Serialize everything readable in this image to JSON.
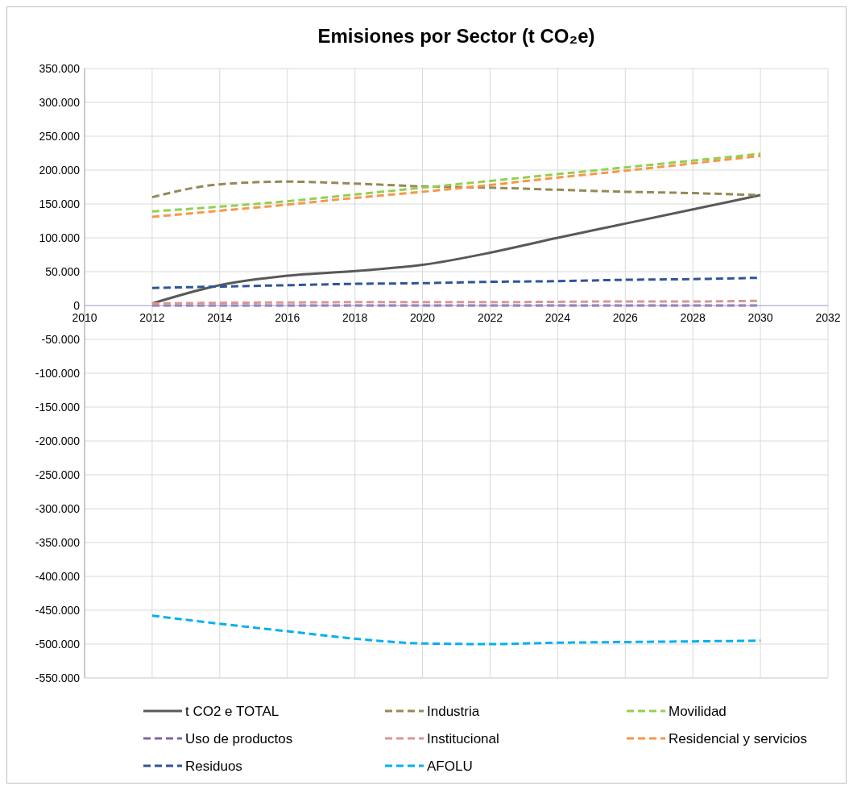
{
  "chart_data": {
    "type": "line",
    "title": "Emisiones por Sector (t CO₂e)",
    "x": [
      2012,
      2014,
      2016,
      2018,
      2020,
      2022,
      2024,
      2026,
      2028,
      2030
    ],
    "xlim": [
      2010,
      2032
    ],
    "xticks": [
      2010,
      2012,
      2014,
      2016,
      2018,
      2020,
      2022,
      2024,
      2026,
      2028,
      2030,
      2032
    ],
    "ylim": [
      -550000,
      350000
    ],
    "yticks": [
      {
        "value": -550000,
        "label": "-550.000"
      },
      {
        "value": -500000,
        "label": "-500.000"
      },
      {
        "value": -450000,
        "label": "-450.000"
      },
      {
        "value": -400000,
        "label": "-400.000"
      },
      {
        "value": -350000,
        "label": "-350.000"
      },
      {
        "value": -300000,
        "label": "-300.000"
      },
      {
        "value": -250000,
        "label": "-250.000"
      },
      {
        "value": -200000,
        "label": "-200.000"
      },
      {
        "value": -150000,
        "label": "-150.000"
      },
      {
        "value": -100000,
        "label": "-100.000"
      },
      {
        "value": -50000,
        "label": "-50.000"
      },
      0,
      {
        "value": 50000,
        "label": "50.000"
      },
      {
        "value": 100000,
        "label": "100.000"
      },
      {
        "value": 150000,
        "label": "150.000"
      },
      {
        "value": 200000,
        "label": "200.000"
      },
      {
        "value": 250000,
        "label": "250.000"
      },
      {
        "value": 300000,
        "label": "300.000"
      },
      {
        "value": 350000,
        "label": "350.000"
      }
    ],
    "grid": true,
    "legend": "bottom",
    "series": [
      {
        "name": "t CO2 e TOTAL",
        "color": "#595959",
        "line_style": "solid",
        "values": [
          3000,
          30000,
          44000,
          51000,
          60000,
          78000,
          100000,
          121000,
          142000,
          163000
        ]
      },
      {
        "name": "Industria",
        "color": "#948a54",
        "line_style": "dashed",
        "values": [
          160000,
          179000,
          183000,
          180000,
          176000,
          174000,
          171000,
          168000,
          166000,
          163000
        ]
      },
      {
        "name": "Movilidad",
        "color": "#92d050",
        "line_style": "dashed",
        "values": [
          139000,
          146000,
          154000,
          164000,
          174000,
          184000,
          194000,
          204000,
          214000,
          224000
        ]
      },
      {
        "name": "Uso de productos",
        "color": "#8064a2",
        "line_style": "dashed",
        "values": [
          0,
          0,
          0,
          0,
          0,
          0,
          0,
          0,
          0,
          0
        ]
      },
      {
        "name": "Institucional",
        "color": "#d99694",
        "line_style": "dashed",
        "values": [
          3000,
          4000,
          4500,
          5000,
          5000,
          5000,
          5500,
          6000,
          6000,
          7000
        ]
      },
      {
        "name": "Residencial y servicios",
        "color": "#f79646",
        "line_style": "dashed",
        "values": [
          131000,
          140000,
          149000,
          159000,
          168000,
          178000,
          189000,
          199000,
          210000,
          221000
        ]
      },
      {
        "name": "Residuos",
        "color": "#2f5597",
        "line_style": "dashed",
        "values": [
          26000,
          28000,
          30000,
          32000,
          33000,
          35000,
          36000,
          38000,
          39000,
          41000
        ]
      },
      {
        "name": "AFOLU",
        "color": "#00b0f0",
        "line_style": "dashed",
        "values": [
          -458000,
          -470000,
          -481000,
          -492000,
          -499000,
          -500000,
          -498000,
          -497000,
          -496000,
          -495000
        ]
      }
    ]
  }
}
